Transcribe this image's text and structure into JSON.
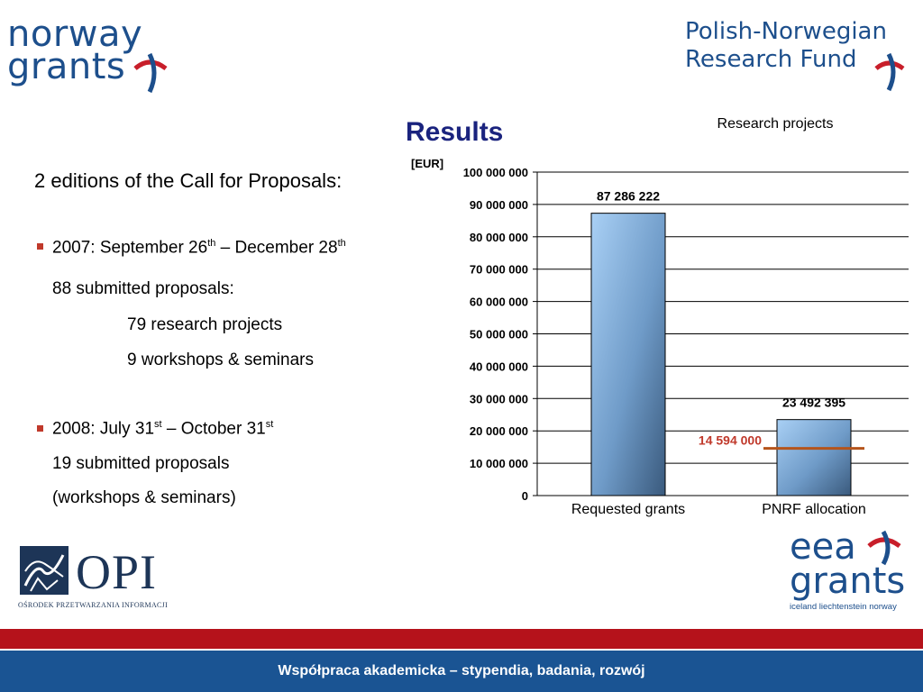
{
  "logos": {
    "norway": {
      "line1": "norway",
      "line2": "grants"
    },
    "pnrf": {
      "line1": "Polish-Norwegian",
      "line2": "Research Fund"
    },
    "opi": {
      "name": "OPI",
      "sub": "OŚRODEK PRZETWARZANIA INFORMACJI"
    },
    "eea": {
      "line1": "eea",
      "line2": "grants",
      "sub": "iceland liechtenstein norway"
    }
  },
  "slide": {
    "title": "Results",
    "intro": "2 editions of the Call for Proposals:",
    "edition1": {
      "pre": "2007: September 26",
      "sup1": "th",
      "mid": " – December 28",
      "sup2": "th",
      "submitted": "88 submitted proposals:",
      "item1": "79 research projects",
      "item2": "9 workshops & seminars"
    },
    "edition2": {
      "pre": "2008: July 31",
      "sup1": "st",
      "mid": " – October 31",
      "sup2": "st",
      "submitted": "19 submitted proposals",
      "note": "(workshops & seminars)"
    }
  },
  "chart_data": {
    "type": "bar",
    "title": "Research projects",
    "ylabel": "[EUR]",
    "categories": [
      "Requested grants",
      "PNRF allocation"
    ],
    "values": [
      87286222,
      23492395
    ],
    "value_labels": [
      "87 286 222",
      "23 492 395"
    ],
    "ylim": [
      0,
      100000000
    ],
    "yticks": [
      0,
      10000000,
      20000000,
      30000000,
      40000000,
      50000000,
      60000000,
      70000000,
      80000000,
      90000000,
      100000000
    ],
    "ytick_labels": [
      "0",
      "10 000 000",
      "20 000 000",
      "30 000 000",
      "40 000 000",
      "50 000 000",
      "60 000 000",
      "70 000 000",
      "80 000 000",
      "90 000 000",
      "100 000 000"
    ],
    "grid": true,
    "annotation": {
      "value": 14594000,
      "label": "14 594 000",
      "category": "PNRF allocation",
      "color": "#c0392b"
    },
    "bar_color": "#8fb8e0"
  },
  "footer": {
    "text": "Współpraca akademicka – stypendia, badania, rozwój"
  }
}
